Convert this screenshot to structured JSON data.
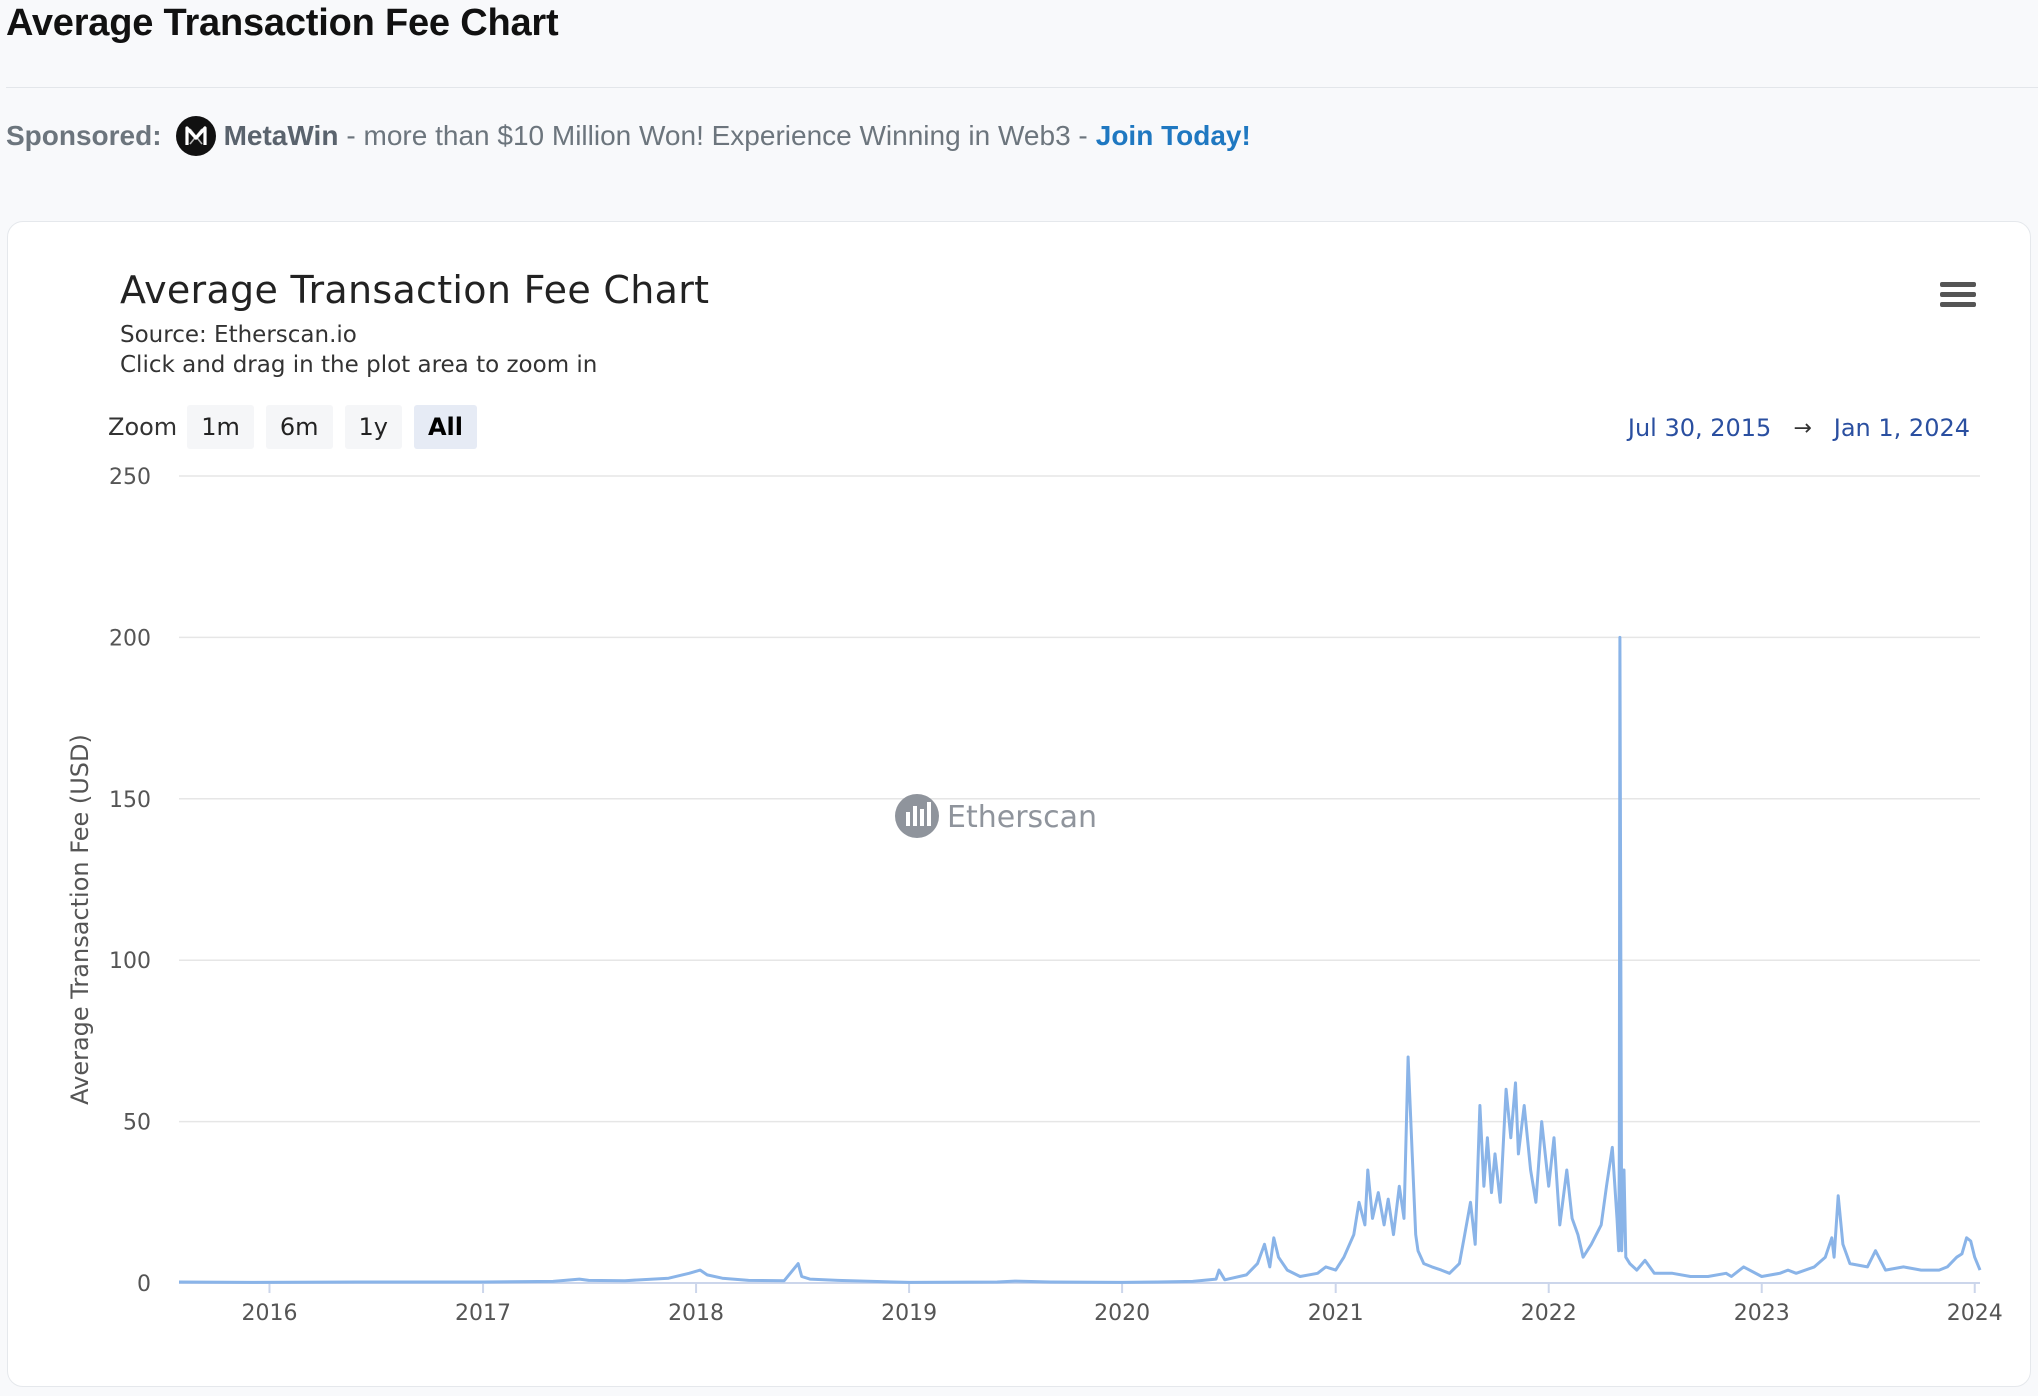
{
  "page": {
    "title": "Average Transaction Fee Chart"
  },
  "sponsored": {
    "label": "Sponsored:",
    "brand": "MetaWin",
    "text": " - more than $10 Million Won! Experience Winning in Web3 - ",
    "cta": "Join Today!"
  },
  "chart_header": {
    "title": "Average Transaction Fee Chart",
    "source": "Source: Etherscan.io",
    "hint": "Click and drag in the plot area to zoom in",
    "zoom_label": "Zoom",
    "zoom_buttons": [
      "1m",
      "6m",
      "1y",
      "All"
    ],
    "zoom_active": "All",
    "range_from": "Jul 30, 2015",
    "range_arrow": "→",
    "range_to": "Jan 1, 2024",
    "watermark": "Etherscan",
    "menu_icon": "hamburger-menu-icon"
  },
  "chart_data": {
    "type": "line",
    "title": "Average Transaction Fee Chart",
    "subtitle": "Source: Etherscan.io",
    "xlabel": "",
    "ylabel": "Average Transaction Fee (USD)",
    "ylim": [
      0,
      250
    ],
    "xlim": [
      "2015-07-30",
      "2024-01-10"
    ],
    "yticks": [
      0,
      50,
      100,
      150,
      200,
      250
    ],
    "xticks": [
      "2016",
      "2017",
      "2018",
      "2019",
      "2020",
      "2021",
      "2022",
      "2023",
      "2024"
    ],
    "grid": true,
    "legend": "none",
    "color": "#8ab4e8",
    "series": [
      {
        "x": [
          "2015-07-30",
          "2015-12-01",
          "2016-06-01",
          "2017-01-01",
          "2017-05-01",
          "2017-06-15",
          "2017-07-01",
          "2017-09-01",
          "2017-11-15",
          "2017-12-20",
          "2018-01-08",
          "2018-01-20",
          "2018-02-15",
          "2018-04-01",
          "2018-06-01",
          "2018-06-25",
          "2018-07-01",
          "2018-07-15",
          "2018-09-01",
          "2019-01-01",
          "2019-06-01",
          "2019-07-01",
          "2019-09-01",
          "2020-01-01",
          "2020-03-01",
          "2020-05-01",
          "2020-06-10",
          "2020-06-15",
          "2020-06-25",
          "2020-08-01",
          "2020-08-20",
          "2020-09-01",
          "2020-09-10",
          "2020-09-17",
          "2020-09-25",
          "2020-10-10",
          "2020-11-01",
          "2020-12-01",
          "2020-12-15",
          "2021-01-01",
          "2021-01-15",
          "2021-02-01",
          "2021-02-10",
          "2021-02-20",
          "2021-02-25",
          "2021-03-05",
          "2021-03-15",
          "2021-03-25",
          "2021-04-01",
          "2021-04-10",
          "2021-04-20",
          "2021-04-28",
          "2021-05-05",
          "2021-05-12",
          "2021-05-18",
          "2021-05-22",
          "2021-06-01",
          "2021-06-15",
          "2021-07-01",
          "2021-07-15",
          "2021-08-01",
          "2021-08-10",
          "2021-08-20",
          "2021-08-28",
          "2021-09-05",
          "2021-09-12",
          "2021-09-18",
          "2021-09-25",
          "2021-10-01",
          "2021-10-10",
          "2021-10-20",
          "2021-10-28",
          "2021-11-05",
          "2021-11-10",
          "2021-11-20",
          "2021-12-01",
          "2021-12-10",
          "2021-12-20",
          "2022-01-01",
          "2022-01-10",
          "2022-01-20",
          "2022-02-01",
          "2022-02-10",
          "2022-02-20",
          "2022-03-01",
          "2022-03-15",
          "2022-04-01",
          "2022-04-10",
          "2022-04-20",
          "2022-04-28",
          "2022-05-01",
          "2022-05-02",
          "2022-05-03",
          "2022-05-06",
          "2022-05-10",
          "2022-05-13",
          "2022-05-20",
          "2022-06-01",
          "2022-06-15",
          "2022-07-01",
          "2022-08-01",
          "2022-09-01",
          "2022-10-01",
          "2022-11-01",
          "2022-11-10",
          "2022-12-01",
          "2023-01-01",
          "2023-02-01",
          "2023-02-15",
          "2023-03-01",
          "2023-04-01",
          "2023-04-20",
          "2023-05-01",
          "2023-05-05",
          "2023-05-12",
          "2023-05-20",
          "2023-06-01",
          "2023-07-01",
          "2023-07-15",
          "2023-08-01",
          "2023-09-01",
          "2023-10-01",
          "2023-11-01",
          "2023-11-15",
          "2023-12-01",
          "2023-12-10",
          "2023-12-18",
          "2023-12-25",
          "2024-01-01",
          "2024-01-10"
        ],
        "y": [
          0.3,
          0.2,
          0.3,
          0.3,
          0.5,
          1.2,
          0.8,
          0.7,
          1.5,
          3,
          4,
          2.5,
          1.5,
          0.8,
          0.7,
          6,
          2,
          1.2,
          0.8,
          0.2,
          0.3,
          0.6,
          0.3,
          0.2,
          0.3,
          0.5,
          1.2,
          4,
          1,
          2.5,
          6,
          12,
          5,
          14,
          8,
          4,
          2,
          3,
          5,
          4,
          8,
          15,
          25,
          18,
          35,
          20,
          28,
          18,
          26,
          15,
          30,
          20,
          70,
          40,
          15,
          10,
          6,
          5,
          4,
          3,
          6,
          15,
          25,
          12,
          55,
          30,
          45,
          28,
          40,
          25,
          60,
          45,
          62,
          40,
          55,
          35,
          25,
          50,
          30,
          45,
          18,
          35,
          20,
          15,
          8,
          12,
          18,
          30,
          42,
          20,
          10,
          40,
          200,
          10,
          35,
          8,
          6,
          4,
          7,
          3,
          3,
          2,
          2,
          3,
          2,
          5,
          2,
          3,
          4,
          3,
          5,
          8,
          14,
          8,
          27,
          12,
          6,
          5,
          10,
          4,
          5,
          4,
          4,
          5,
          8,
          9,
          14,
          13,
          8,
          4
        ]
      }
    ]
  }
}
